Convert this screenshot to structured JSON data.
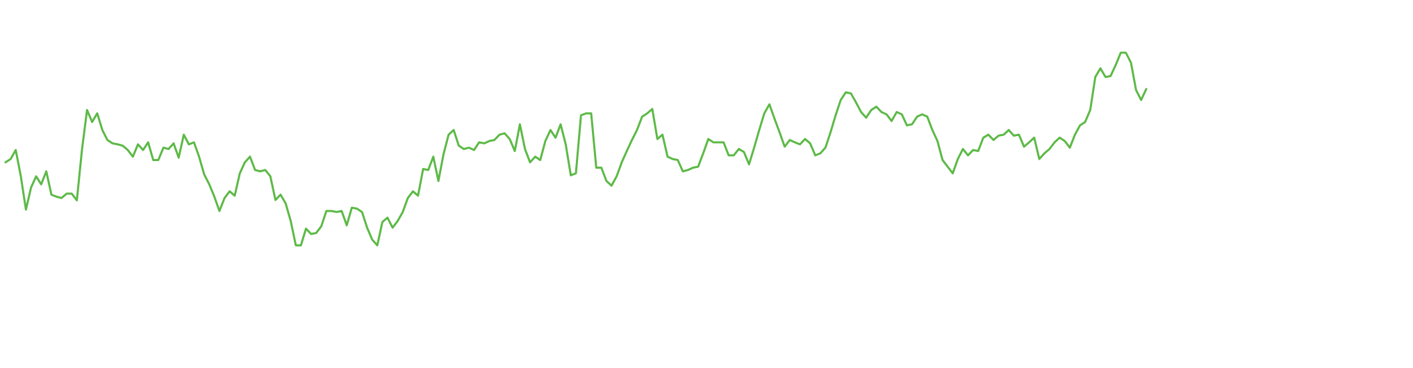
{
  "chart_data": {
    "type": "line",
    "title": "",
    "xlabel": "",
    "ylabel": "",
    "grid": false,
    "axes_visible": false,
    "line_color": "#5cb946",
    "x_range": [
      0,
      195
    ],
    "y_range": [
      0,
      100
    ],
    "series": [
      {
        "values": [
          56.5,
          57.5,
          60.2,
          52.3,
          42.3,
          48.9,
          52.3,
          49.9,
          53.8,
          46.8,
          46.2,
          45.8,
          47.1,
          47.1,
          45.1,
          60.2,
          72.2,
          68.6,
          71.2,
          66.2,
          63.2,
          62.2,
          61.9,
          61.5,
          60.2,
          58.2,
          61.9,
          60.2,
          62.5,
          57.2,
          57.2,
          60.9,
          60.5,
          62.2,
          57.9,
          64.8,
          61.9,
          62.5,
          58.2,
          52.9,
          49.9,
          46.2,
          41.9,
          45.8,
          47.8,
          46.5,
          53.2,
          56.5,
          58.2,
          54.2,
          53.8,
          54.2,
          52.3,
          45.2,
          46.8,
          44.2,
          38.9,
          31.6,
          31.6,
          36.6,
          35.0,
          35.3,
          37.3,
          41.9,
          41.9,
          41.6,
          41.9,
          37.6,
          42.9,
          42.6,
          41.6,
          36.9,
          33.3,
          31.6,
          38.6,
          39.9,
          36.9,
          38.9,
          41.6,
          45.8,
          47.8,
          46.5,
          54.5,
          54.2,
          58.2,
          50.9,
          58.9,
          64.8,
          66.2,
          61.5,
          60.5,
          60.9,
          60.2,
          62.5,
          62.2,
          62.9,
          63.2,
          64.8,
          65.2,
          63.5,
          59.9,
          67.9,
          60.5,
          56.5,
          58.2,
          57.2,
          62.9,
          66.2,
          63.9,
          67.9,
          61.9,
          52.6,
          53.2,
          70.6,
          71.2,
          71.2,
          54.9,
          54.9,
          50.9,
          49.5,
          52.3,
          56.5,
          59.9,
          63.2,
          66.2,
          70.2,
          71.2,
          72.5,
          63.5,
          64.8,
          58.2,
          57.5,
          57.2,
          53.8,
          54.2,
          54.9,
          55.2,
          59.2,
          63.5,
          62.5,
          62.5,
          62.5,
          58.6,
          58.6,
          60.5,
          59.6,
          55.9,
          60.9,
          66.2,
          71.2,
          73.9,
          69.6,
          65.5,
          61.2,
          63.2,
          62.5,
          61.9,
          63.5,
          62.2,
          58.6,
          59.2,
          60.9,
          65.5,
          70.6,
          75.2,
          77.5,
          77.2,
          74.5,
          71.6,
          69.9,
          72.2,
          73.2,
          71.6,
          70.9,
          68.9,
          71.6,
          70.9,
          67.6,
          67.9,
          70.2,
          70.9,
          70.2,
          66.2,
          62.9,
          57.2,
          55.2,
          53.2,
          57.5,
          60.5,
          58.6,
          60.2,
          59.9,
          63.9,
          64.8,
          63.2,
          64.5,
          64.8,
          66.2,
          64.5,
          64.8,
          61.2,
          62.5,
          63.9,
          57.5,
          59.2,
          60.5,
          62.5,
          63.9,
          62.9,
          60.9,
          64.8,
          67.6,
          68.6,
          72.2,
          82.1,
          84.7,
          82.1,
          82.4,
          85.7,
          89.4,
          89.4,
          86.4,
          78.2,
          75.2,
          78.5
        ]
      }
    ]
  }
}
